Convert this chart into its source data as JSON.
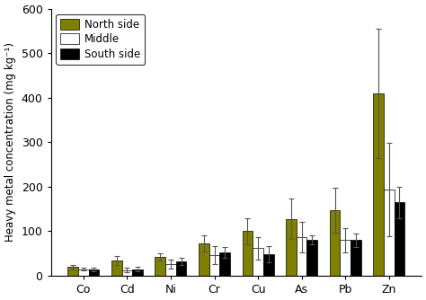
{
  "categories": [
    "Co",
    "Cd",
    "Ni",
    "Cr",
    "Cu",
    "As",
    "Pb",
    "Zn"
  ],
  "north_side": [
    20,
    35,
    42,
    72,
    100,
    128,
    147,
    410
  ],
  "middle": [
    15,
    13,
    27,
    47,
    62,
    87,
    80,
    193
  ],
  "south_side": [
    14,
    15,
    32,
    53,
    48,
    80,
    80,
    165
  ],
  "north_err": [
    5,
    10,
    8,
    18,
    30,
    45,
    50,
    145
  ],
  "middle_err": [
    3,
    5,
    10,
    20,
    25,
    35,
    28,
    105
  ],
  "south_err": [
    4,
    5,
    8,
    12,
    18,
    10,
    15,
    35
  ],
  "north_color": "#808000",
  "middle_color": "#ffffff",
  "south_color": "#000000",
  "bar_edge_color": "#000000",
  "error_color": "#555555",
  "ylabel": "Heavy metal concentration (mg kg⁻¹)",
  "ylim": [
    0,
    600
  ],
  "yticks": [
    0,
    100,
    200,
    300,
    400,
    500,
    600
  ],
  "legend_labels": [
    "North side",
    "Middle",
    "South side"
  ],
  "fig_width": 4.74,
  "fig_height": 3.34,
  "dpi": 100,
  "bar_width": 0.24
}
